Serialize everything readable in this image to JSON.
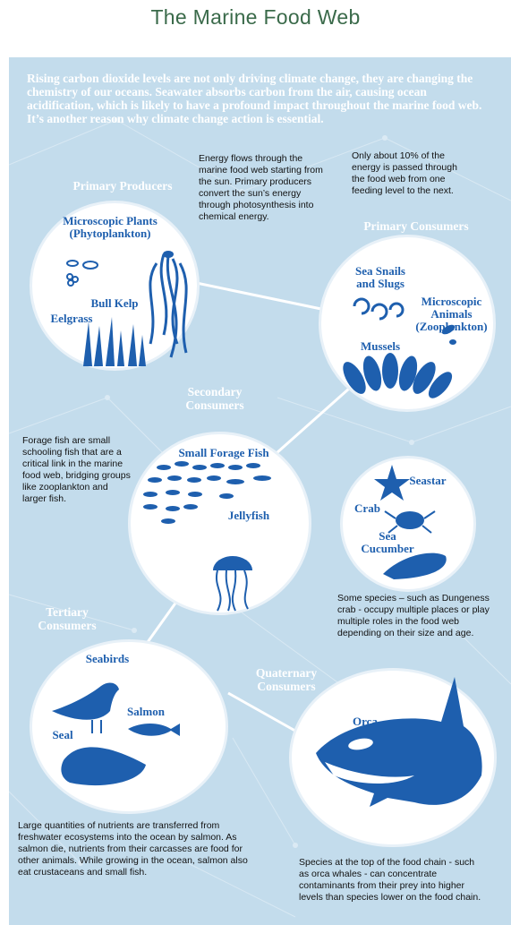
{
  "title": "The Marine Food Web",
  "intro": "Rising carbon dioxide levels are not only driving climate change, they are changing the chemistry of our oceans. Seawater absorbs carbon from the air, causing ocean acidification, which is likely to have a profound impact throughout the marine food web. It’s another reason why climate change action is essential.",
  "notes": {
    "energy": "Energy flows through the marine food web starting from the sun. Primary producers convert the sun’s energy through photosynthesis into chemical energy.",
    "ten_percent": "Only about 10% of the energy is passed through the food web from one feeding level to the next.",
    "forage": "Forage fish are small schooling fish that are a critical link in the marine food web, bridging groups like zooplankton and larger fish.",
    "multiple_roles": "Some species – such as Dungeness crab - occupy multiple places or play multiple roles in the food web depending on their size and age.",
    "nutrients": "Large quantities of nutrients are transferred from freshwater ecosystems into the ocean by salmon. As salmon die, nutrients from their carcasses are food for other animals. While growing in the ocean, salmon also eat crustaceans and small fish.",
    "top_chain": "Species at the top of the food chain - such as orca whales - can concentrate contaminants from their prey into higher levels than species lower on the food chain."
  },
  "levels": {
    "primary_producers": "Primary Producers",
    "primary_consumers": "Primary Consumers",
    "secondary_consumers": "Secondary Consumers",
    "tertiary_consumers": "Tertiary Consumers",
    "quaternary_consumers": "Quaternary Consumers"
  },
  "organisms": {
    "phytoplankton": "Microscopic Plants (Phytoplankton)",
    "bull_kelp": "Bull Kelp",
    "eelgrass": "Eelgrass",
    "sea_snails": "Sea Snails and Slugs",
    "zooplankton": "Microscopic Animals (Zooplankton)",
    "mussels": "Mussels",
    "forage_fish": "Small Forage Fish",
    "jellyfish": "Jellyfish",
    "seastar": "Seastar",
    "crab": "Crab",
    "sea_cucumber": "Sea Cucumber",
    "seabirds": "Seabirds",
    "salmon": "Salmon",
    "seal": "Seal",
    "orca": "Orca"
  },
  "colors": {
    "panel": "#c3dcec",
    "accent": "#1e5fae",
    "title": "#3a6a4a",
    "circle": "#ffffff"
  }
}
